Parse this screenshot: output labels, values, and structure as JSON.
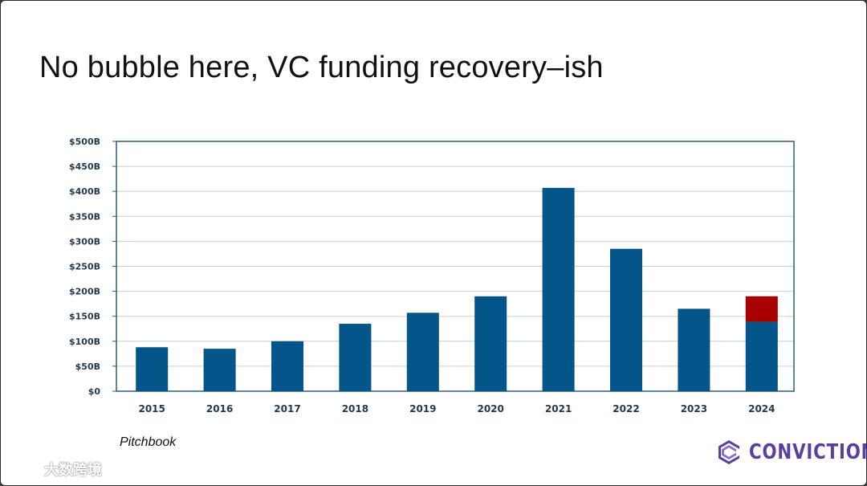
{
  "slide": {
    "title": "No bubble here, VC funding recovery–ish",
    "source": "Pitchbook",
    "logo_text": "CONVICTION",
    "watermark_text": "大数跨境"
  },
  "colors": {
    "bar": "#03558a",
    "bar_highlight": "#a80000",
    "axis": "#2b5f78",
    "grid": "#c8cfd4",
    "tick_text": "#1f3a4f",
    "logo": "#5b3fa0"
  },
  "chart_data": {
    "type": "bar",
    "categories": [
      "2015",
      "2016",
      "2017",
      "2018",
      "2019",
      "2020",
      "2021",
      "2022",
      "2023",
      "2024"
    ],
    "series": [
      {
        "values": [
          88,
          85,
          100,
          135,
          157,
          190,
          407,
          285,
          165,
          139
        ]
      },
      {
        "values": [
          0,
          0,
          0,
          0,
          0,
          0,
          0,
          0,
          0,
          51
        ]
      }
    ],
    "ylim": [
      0,
      500
    ],
    "yticks": [
      0,
      50,
      100,
      150,
      200,
      250,
      300,
      350,
      400,
      450,
      500
    ],
    "ytick_labels": [
      "$0",
      "$50B",
      "$100B",
      "$150B",
      "$200B",
      "$250B",
      "$300B",
      "$350B",
      "$400B",
      "$450B",
      "$500B"
    ],
    "grid": true,
    "legend": "none",
    "title": "",
    "xlabel": "",
    "ylabel": ""
  }
}
